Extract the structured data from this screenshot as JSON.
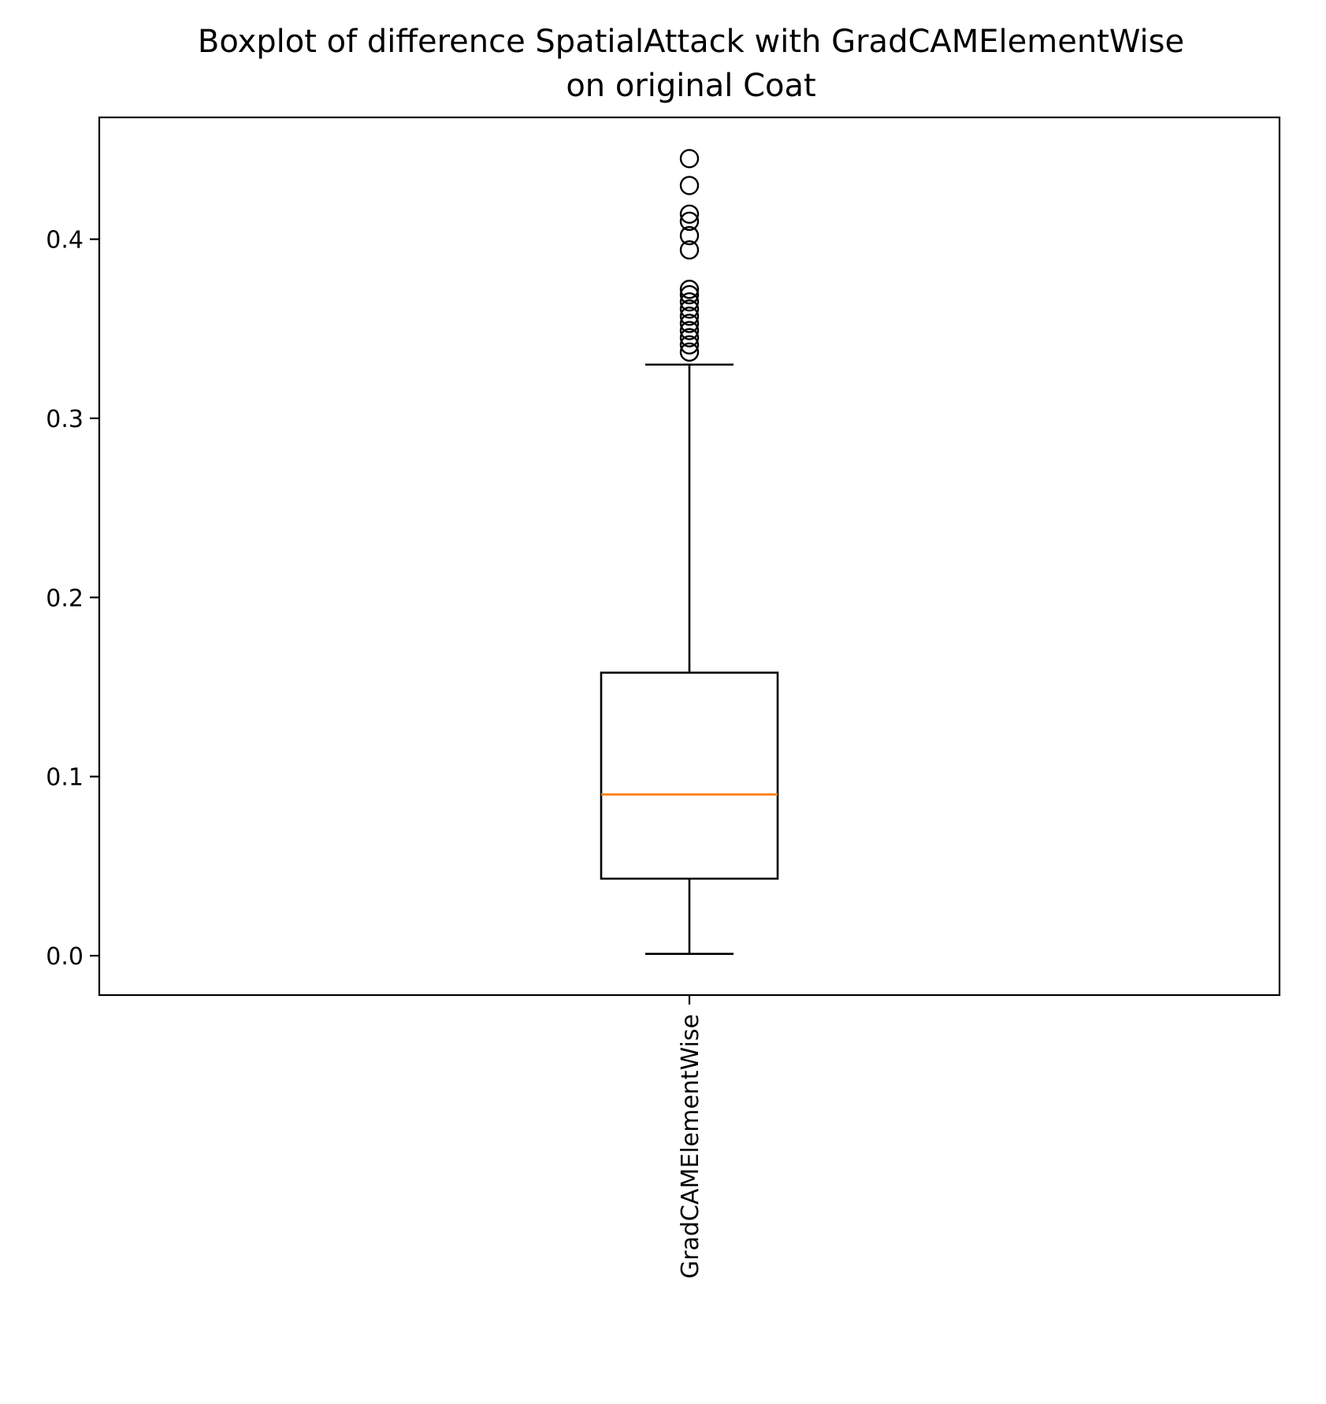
{
  "chart_data": {
    "type": "boxplot",
    "title_lines": [
      "Boxplot of difference SpatialAttack with GradCAMElementWise",
      "on original Coat"
    ],
    "xlabel": "",
    "ylabel": "",
    "categories": [
      "GradCAMElementWise"
    ],
    "x_tick_rotation_deg": 90,
    "ylim": [
      -0.022,
      0.468
    ],
    "y_ticks": [
      0.0,
      0.1,
      0.2,
      0.3,
      0.4
    ],
    "y_tick_labels": [
      "0.0",
      "0.1",
      "0.2",
      "0.3",
      "0.4"
    ],
    "grid": false,
    "legend": "none",
    "boxes": [
      {
        "category": "GradCAMElementWise",
        "whisker_low": 0.001,
        "q1": 0.043,
        "median": 0.09,
        "q3": 0.158,
        "whisker_high": 0.33,
        "outliers": [
          0.337,
          0.341,
          0.345,
          0.349,
          0.353,
          0.357,
          0.361,
          0.365,
          0.369,
          0.372,
          0.394,
          0.402,
          0.41,
          0.414,
          0.43,
          0.445
        ]
      }
    ],
    "colors": {
      "box": "#000000",
      "median": "#ff7f0e",
      "whisker": "#000000",
      "outlier": "#000000"
    }
  }
}
